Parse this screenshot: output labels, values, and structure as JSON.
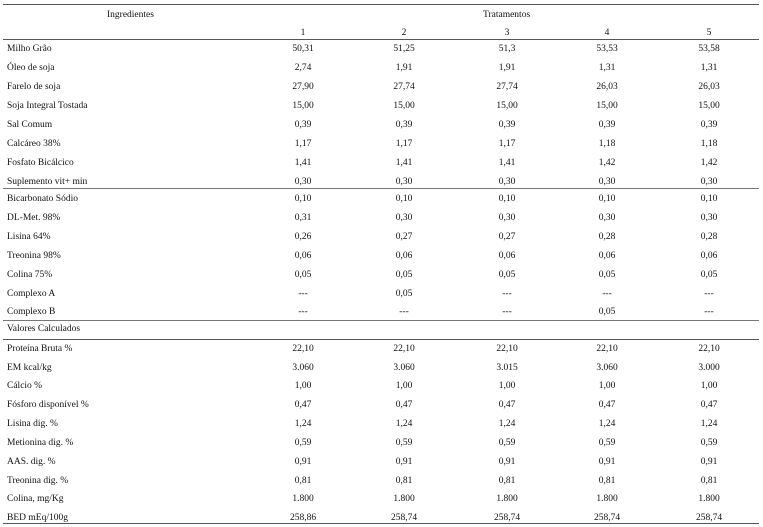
{
  "header": {
    "ingredients_label": "Ingredientes",
    "treatments_label": "Tratamentos",
    "treatment_numbers": [
      "1",
      "2",
      "3",
      "4",
      "5"
    ]
  },
  "ingredients": [
    {
      "name": "Milho Grão",
      "values": [
        "50,31",
        "51,25",
        "51,3",
        "53,53",
        "53,58"
      ]
    },
    {
      "name": "Óleo de soja",
      "values": [
        "2,74",
        "1,91",
        "1,91",
        "1,31",
        "1,31"
      ]
    },
    {
      "name": "Farelo de soja",
      "values": [
        "27,90",
        "27,74",
        "27,74",
        "26,03",
        "26,03"
      ]
    },
    {
      "name": "Soja Integral Tostada",
      "values": [
        "15,00",
        "15,00",
        "15,00",
        "15,00",
        "15,00"
      ]
    },
    {
      "name": "Sal Comum",
      "values": [
        "0,39",
        "0,39",
        "0,39",
        "0,39",
        "0,39"
      ]
    },
    {
      "name": "Calcáreo 38%",
      "values": [
        "1,17",
        "1,17",
        "1,17",
        "1,18",
        "1,18"
      ]
    },
    {
      "name": "Fosfato Bicálcico",
      "values": [
        "1,41",
        "1,41",
        "1,41",
        "1,42",
        "1,42"
      ]
    },
    {
      "name": "Suplemento vit+ min",
      "values": [
        "0,30",
        "0,30",
        "0,30",
        "0,30",
        "0,30"
      ]
    }
  ],
  "additives": [
    {
      "name": "Bicarbonato Sódio",
      "values": [
        "0,10",
        "0,10",
        "0,10",
        "0,10",
        "0,10"
      ]
    },
    {
      "name": "DL-Met. 98%",
      "values": [
        "0,31",
        "0,30",
        "0,30",
        "0,30",
        "0,30"
      ]
    },
    {
      "name": "Lisina 64%",
      "values": [
        "0,26",
        "0,27",
        "0,27",
        "0,28",
        "0,28"
      ]
    },
    {
      "name": "Treonina 98%",
      "values": [
        "0,06",
        "0,06",
        "0,06",
        "0,06",
        "0,06"
      ]
    },
    {
      "name": "Colina 75%",
      "values": [
        "0,05",
        "0,05",
        "0,05",
        "0,05",
        "0,05"
      ]
    },
    {
      "name": "Complexo A",
      "values": [
        "---",
        "0,05",
        "---",
        "---",
        "---"
      ]
    },
    {
      "name": "Complexo B",
      "values": [
        "---",
        "---",
        "---",
        "0,05",
        "---"
      ]
    }
  ],
  "calculated_section_label": "Valores Calculados",
  "calculated": [
    {
      "name": "Proteína Bruta %",
      "values": [
        "22,10",
        "22,10",
        "22,10",
        "22,10",
        "22,10"
      ]
    },
    {
      "name": "EM kcal/kg",
      "values": [
        "3.060",
        "3.060",
        "3.015",
        "3.060",
        "3.000"
      ]
    },
    {
      "name": "Cálcio %",
      "values": [
        "1,00",
        "1,00",
        "1,00",
        "1,00",
        "1,00"
      ]
    },
    {
      "name": "Fósforo disponível %",
      "values": [
        "0,47",
        "0,47",
        "0,47",
        "0,47",
        "0,47"
      ]
    },
    {
      "name": "Lisina dig. %",
      "values": [
        "1,24",
        "1,24",
        "1,24",
        "1,24",
        "1,24"
      ]
    },
    {
      "name": "Metionina dig. %",
      "values": [
        "0,59",
        "0,59",
        "0,59",
        "0,59",
        "0,59"
      ]
    },
    {
      "name": "AAS. dig. %",
      "values": [
        "0,91",
        "0,91",
        "0,91",
        "0,91",
        "0,91"
      ]
    },
    {
      "name": "Treonina dig. %",
      "values": [
        "0,81",
        "0,81",
        "0,81",
        "0,81",
        "0,81"
      ]
    },
    {
      "name": "Colina, mg/Kg",
      "values": [
        "1.800",
        "1.800",
        "1.800",
        "1.800",
        "1.800"
      ]
    },
    {
      "name": "BED mEq/100g",
      "values": [
        "258,86",
        "258,74",
        "258,74",
        "258,74",
        "258,74"
      ]
    }
  ]
}
